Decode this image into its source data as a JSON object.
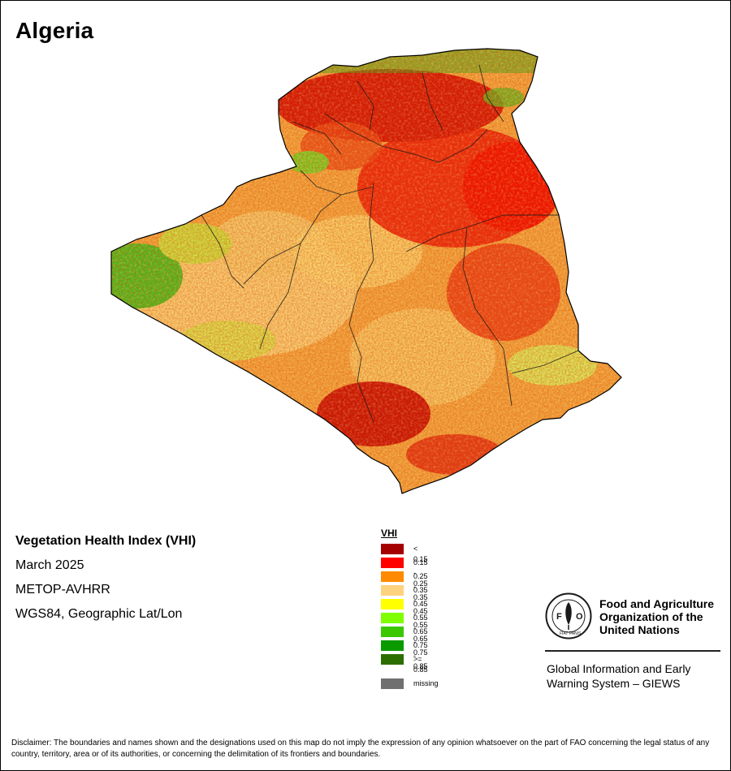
{
  "title": "Algeria",
  "info": {
    "product": "Vegetation Health Index (VHI)",
    "date": "March 2025",
    "sensor": "METOP-AVHRR",
    "projection": "WGS84, Geographic Lat/Lon"
  },
  "legend": {
    "title": "VHI",
    "classes": [
      {
        "label": "< 0.15",
        "color": "#a50000"
      },
      {
        "label": "0.15 - 0.25",
        "color": "#ff0000"
      },
      {
        "label": "0.25 - 0.35",
        "color": "#ff8a00"
      },
      {
        "label": "0.35 - 0.45",
        "color": "#ffd27f"
      },
      {
        "label": "0.45 - 0.55",
        "color": "#ffff00"
      },
      {
        "label": "0.55 - 0.65",
        "color": "#7fff00"
      },
      {
        "label": "0.65 - 0.75",
        "color": "#3cc800"
      },
      {
        "label": "0.75 - 0.85",
        "color": "#0a9a00"
      },
      {
        "label": ">= 0.85",
        "color": "#2d6e00"
      }
    ],
    "missing": {
      "label": "missing",
      "color": "#707070"
    }
  },
  "org": {
    "logo_text": "FAO",
    "logo_motto": "FIAT PANIS",
    "name_line1": "Food and Agriculture",
    "name_line2": "Organization of the",
    "name_line3": "United Nations",
    "giews_line1": "Global Information and Early",
    "giews_line2": "Warning System – GIEWS"
  },
  "disclaimer": "Disclaimer: The boundaries and names shown and the designations used on this map do not imply the expression of any opinion whatsoever on the part of FAO concerning the legal status of any country, territory, area or of its authorities, or concerning the delimitation of its frontiers and boundaries."
}
